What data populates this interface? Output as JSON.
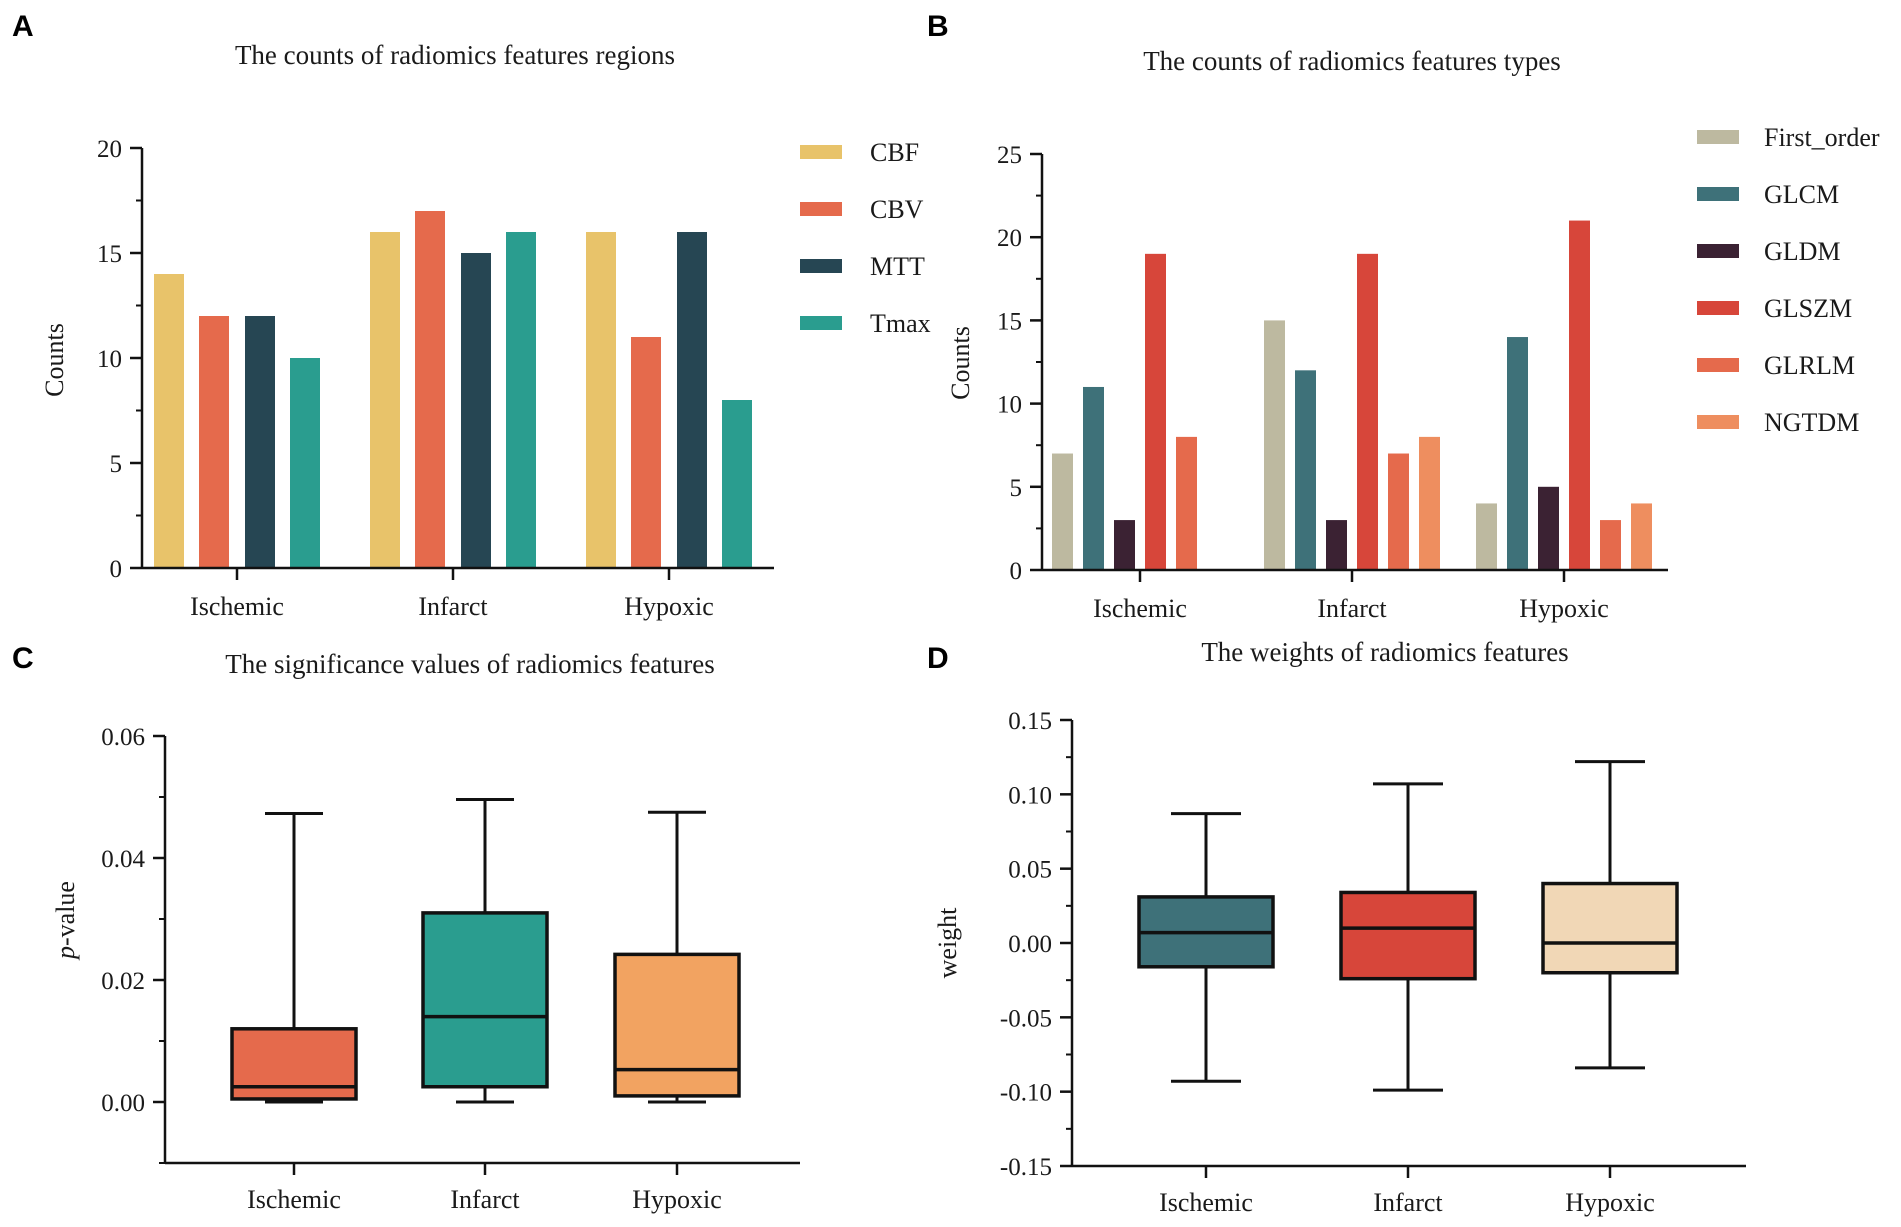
{
  "chart_data": [
    {
      "panel": "A",
      "type": "bar",
      "title": "The counts of radiomics features regions",
      "xlabel": "",
      "ylabel": "Counts",
      "categories": [
        "Ischemic",
        "Infarct",
        "Hypoxic"
      ],
      "ylim": [
        0,
        20
      ],
      "yticks": [
        0,
        5,
        10,
        15,
        20
      ],
      "legend_position": "right",
      "series": [
        {
          "name": "CBF",
          "color": "#E8C36A",
          "values": [
            14,
            16,
            16
          ]
        },
        {
          "name": "CBV",
          "color": "#E56A4C",
          "values": [
            12,
            17,
            11
          ]
        },
        {
          "name": "MTT",
          "color": "#264653",
          "values": [
            12,
            15,
            16
          ]
        },
        {
          "name": "Tmax",
          "color": "#2A9D8F",
          "values": [
            10,
            16,
            8
          ]
        }
      ]
    },
    {
      "panel": "B",
      "type": "bar",
      "title": "The counts of radiomics features types",
      "xlabel": "",
      "ylabel": "Counts",
      "categories": [
        "Ischemic",
        "Infarct",
        "Hypoxic"
      ],
      "ylim": [
        0,
        25
      ],
      "yticks": [
        0,
        5,
        10,
        15,
        20,
        25
      ],
      "legend_position": "right",
      "series": [
        {
          "name": "First_order",
          "color": "#BDB9A0",
          "values": [
            7,
            15,
            4
          ]
        },
        {
          "name": "GLCM",
          "color": "#3E7179",
          "values": [
            11,
            12,
            14
          ]
        },
        {
          "name": "GLDM",
          "color": "#3B2233",
          "values": [
            3,
            3,
            5
          ]
        },
        {
          "name": "GLSZM",
          "color": "#D7463A",
          "values": [
            19,
            19,
            21
          ]
        },
        {
          "name": "GLRLM",
          "color": "#E56A4C",
          "values": [
            8,
            7,
            3
          ]
        },
        {
          "name": "NGTDM",
          "color": "#EE8E5F",
          "values": [
            0,
            8,
            4
          ]
        }
      ]
    },
    {
      "panel": "C",
      "type": "box",
      "title": "The significance values of radiomics features",
      "xlabel": "",
      "ylabel": "p-value",
      "ylabel_italic": "p",
      "ylabel_rest": "-value",
      "categories": [
        "Ischemic",
        "Infarct",
        "Hypoxic"
      ],
      "ylim": [
        -0.01,
        0.06
      ],
      "yticks": [
        0.0,
        0.02,
        0.04,
        0.06
      ],
      "ytick_labels": [
        "0.00",
        "0.02",
        "0.04",
        "0.06"
      ],
      "boxes": [
        {
          "name": "Ischemic",
          "color": "#E56A4C",
          "min": 0.0,
          "q1": 0.0005,
          "median": 0.0025,
          "q3": 0.012,
          "max": 0.0473
        },
        {
          "name": "Infarct",
          "color": "#2A9D8F",
          "min": 0.0,
          "q1": 0.0025,
          "median": 0.014,
          "q3": 0.031,
          "max": 0.0496
        },
        {
          "name": "Hypoxic",
          "color": "#F2A361",
          "min": 0.0,
          "q1": 0.001,
          "median": 0.0053,
          "q3": 0.0242,
          "max": 0.0475
        }
      ]
    },
    {
      "panel": "D",
      "type": "box",
      "title": "The weights of radiomics features",
      "xlabel": "",
      "ylabel": "weight",
      "categories": [
        "Ischemic",
        "Infarct",
        "Hypoxic"
      ],
      "ylim": [
        -0.15,
        0.15
      ],
      "yticks": [
        -0.15,
        -0.1,
        -0.05,
        0.0,
        0.05,
        0.1,
        0.15
      ],
      "ytick_labels": [
        "-0.15",
        "-0.10",
        "-0.05",
        "0.00",
        "0.05",
        "0.10",
        "0.15"
      ],
      "boxes": [
        {
          "name": "Ischemic",
          "color": "#3E7179",
          "min": -0.093,
          "q1": -0.016,
          "median": 0.007,
          "q3": 0.031,
          "max": 0.087
        },
        {
          "name": "Infarct",
          "color": "#D7463A",
          "min": -0.099,
          "q1": -0.024,
          "median": 0.01,
          "q3": 0.034,
          "max": 0.107
        },
        {
          "name": "Hypoxic",
          "color": "#F1D7B6",
          "min": -0.084,
          "q1": -0.02,
          "median": 0.0,
          "q3": 0.04,
          "max": 0.122
        }
      ]
    }
  ]
}
